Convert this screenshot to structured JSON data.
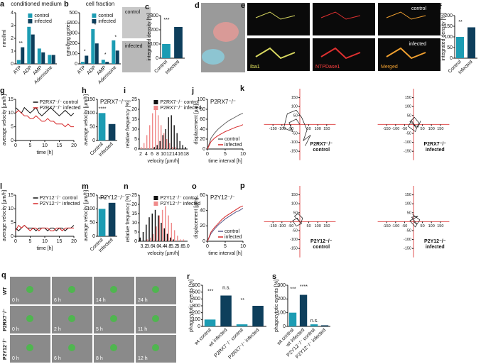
{
  "chart_data": [
    {
      "type": "bar",
      "label": "a",
      "title": "conditioned medium",
      "ylabel": "nmol/ml",
      "categories": [
        "ATP",
        "ADP",
        "AMP",
        "Adenosine"
      ],
      "series": [
        {
          "name": "control",
          "color": "#1c9cb3",
          "values": [
            0.3,
            2.9,
            1.2,
            0.7
          ]
        },
        {
          "name": "infected",
          "color": "#0e3f5c",
          "values": [
            1.3,
            2.3,
            0.9,
            0.7
          ]
        }
      ],
      "ylim": [
        0,
        4
      ],
      "yticks": [
        0,
        1,
        2,
        3,
        4
      ],
      "legend": "upper right",
      "annotations": [
        "**"
      ]
    },
    {
      "type": "bar",
      "label": "b",
      "title": "cell fraction",
      "ylabel": "nmol/mg protein",
      "categories": [
        "ATP",
        "ADP",
        "AMP",
        "Adenosine"
      ],
      "series": [
        {
          "name": "control",
          "color": "#1c9cb3",
          "values": [
            20,
            340,
            40,
            230
          ]
        },
        {
          "name": "infected",
          "color": "#0e3f5c",
          "values": [
            80,
            200,
            20,
            130
          ]
        }
      ],
      "ylim": [
        0,
        500
      ],
      "yticks": [
        0,
        100,
        200,
        300,
        400,
        500
      ],
      "legend": "upper right",
      "annotations": [
        "*",
        "*",
        "*",
        "*"
      ]
    },
    {
      "type": "bar",
      "label": "c",
      "ylabel": "integrated density [%]",
      "categories": [
        "Control",
        "Infected"
      ],
      "values": [
        100,
        220
      ],
      "colors": [
        "#1c9cb3",
        "#0e3f5c"
      ],
      "ylim": [
        0,
        300
      ],
      "yticks": [
        0,
        100,
        200,
        300
      ],
      "annotations": [
        "***"
      ]
    },
    {
      "type": "bar",
      "label": "f",
      "ylabel": "integrated density [%]",
      "categories": [
        "Control",
        "Infected"
      ],
      "values": [
        100,
        145
      ],
      "colors": [
        "#1c9cb3",
        "#0e3f5c"
      ],
      "ylim": [
        0,
        200
      ],
      "yticks": [
        0,
        50,
        100,
        150,
        200
      ],
      "annotations": [
        "**"
      ]
    },
    {
      "type": "line",
      "label": "g",
      "xlabel": "time [h]",
      "ylabel": "average velocity [µm/h]",
      "x": [
        0,
        1,
        2,
        3,
        4,
        5,
        6,
        7,
        8,
        9,
        10,
        11,
        12,
        13,
        14,
        15,
        16,
        17,
        18,
        19,
        20
      ],
      "series": [
        {
          "name": "P2RX7⁻/⁻ control",
          "color": "#111111",
          "values": [
            12,
            11,
            10,
            12,
            11,
            10,
            11,
            12,
            10,
            9,
            10,
            11,
            12,
            11,
            10,
            9,
            10,
            11,
            10,
            9,
            10
          ]
        },
        {
          "name": "P2RX7⁻/⁻ infected",
          "color": "#d62728",
          "values": [
            10,
            11,
            10,
            9,
            9,
            8,
            8,
            9,
            8,
            7,
            7,
            8,
            7,
            7,
            6,
            6,
            6,
            5,
            6,
            5,
            5
          ]
        }
      ],
      "xlim": [
        0,
        20
      ],
      "xticks": [
        0,
        5,
        10,
        15,
        20
      ],
      "ylim": [
        0,
        15
      ],
      "yticks": [
        0,
        5,
        10,
        15
      ],
      "legend": "upper right"
    },
    {
      "type": "bar",
      "label": "h",
      "title": "P2RX7⁻/⁻",
      "ylabel": "average velocity [µm/h]",
      "categories": [
        "Control",
        "Infected"
      ],
      "values": [
        100,
        60
      ],
      "colors": [
        "#1c9cb3",
        "#0e3f5c"
      ],
      "ylim": [
        0,
        150
      ],
      "yticks": [
        0,
        50,
        100,
        150
      ],
      "annotations": [
        "****"
      ]
    },
    {
      "type": "bar",
      "label": "i",
      "xlabel": "velocity [µm/h]",
      "ylabel": "relative frequency [%]",
      "categories": [
        "2",
        null,
        "4",
        null,
        "6",
        null,
        "8",
        null,
        "10",
        null,
        "12",
        null,
        "14",
        null,
        "16",
        null,
        "18"
      ],
      "series": [
        {
          "name": "P2RX7⁻/⁻ control",
          "color": "#111111",
          "values": [
            0,
            0,
            0,
            0,
            0,
            1,
            2,
            4,
            7,
            10,
            16,
            17,
            12,
            8,
            4,
            2,
            1
          ]
        },
        {
          "name": "P2RX7⁻/⁻ infected",
          "color": "#f08a8a",
          "values": [
            1,
            3,
            7,
            12,
            18,
            21,
            17,
            12,
            8,
            5,
            3,
            1,
            1,
            0,
            0,
            0,
            0
          ]
        }
      ],
      "ylim": [
        0,
        25
      ],
      "yticks": [
        0,
        5,
        10,
        15,
        20,
        25
      ],
      "legend": "upper right"
    },
    {
      "type": "line",
      "label": "j",
      "title": "P2RX7⁻/⁻",
      "xlabel": "time interval [h]",
      "ylabel": "displacement [µm]",
      "x": [
        0,
        1,
        2,
        3,
        4,
        5,
        6,
        7,
        8,
        9,
        10
      ],
      "series": [
        {
          "name": "control",
          "color": "#666666",
          "values": [
            0,
            22,
            32,
            40,
            46,
            52,
            57,
            61,
            65,
            69,
            72
          ]
        },
        {
          "name": "infected",
          "color": "#d62728",
          "values": [
            0,
            15,
            22,
            27,
            31,
            35,
            38,
            41,
            44,
            46,
            49
          ]
        }
      ],
      "xlim": [
        0,
        10
      ],
      "xticks": [
        0,
        5,
        10
      ],
      "ylim": [
        0,
        100
      ],
      "yticks": [
        0,
        20,
        40,
        60,
        80,
        100
      ],
      "legend": "lower right"
    },
    {
      "type": "trajectory",
      "label": "k",
      "xlim": [
        -200,
        200
      ],
      "ylim": [
        -200,
        200
      ],
      "xticks": [
        -150,
        -100,
        -50,
        50,
        100,
        150
      ],
      "yticks": [
        -150,
        -100,
        -50,
        50,
        100,
        150
      ],
      "plots": [
        {
          "caption": [
            "P2RX7⁻/⁻",
            "control"
          ],
          "x": [
            0,
            -20,
            -60,
            -40,
            -90,
            -70,
            -20,
            10,
            40,
            20,
            60,
            30
          ],
          "y": [
            0,
            30,
            10,
            -40,
            -20,
            60,
            80,
            40,
            -30,
            -90,
            -60,
            -120
          ]
        },
        {
          "caption": [
            "P2RX7⁻/⁻",
            "infected"
          ],
          "x": [
            0,
            15,
            -10,
            -30,
            10,
            30,
            5,
            -20,
            25,
            40
          ],
          "y": [
            0,
            -20,
            20,
            -10,
            -40,
            10,
            40,
            15,
            -15,
            20
          ]
        }
      ]
    },
    {
      "type": "line",
      "label": "l",
      "xlabel": "time [h]",
      "ylabel": "average velocity [µm/h]",
      "x": [
        0,
        1,
        2,
        3,
        4,
        5,
        6,
        7,
        8,
        9,
        10,
        11,
        12,
        13,
        14,
        15,
        16,
        17,
        18,
        19,
        20
      ],
      "series": [
        {
          "name": "P2Y12⁻/⁻ control",
          "color": "#111111",
          "values": [
            3,
            2,
            3,
            4,
            3,
            3,
            3,
            2,
            3,
            3,
            3,
            2,
            3,
            3,
            2,
            3,
            3,
            2,
            3,
            3,
            4
          ]
        },
        {
          "name": "P2Y12⁻/⁻ infected",
          "color": "#d62728",
          "values": [
            2,
            4,
            3,
            4,
            3,
            2,
            3,
            3,
            2,
            3,
            3,
            3,
            2,
            2,
            3,
            3,
            2,
            3,
            3,
            3,
            3
          ]
        }
      ],
      "xlim": [
        0,
        20
      ],
      "xticks": [
        0,
        5,
        10,
        15,
        20
      ],
      "ylim": [
        0,
        15
      ],
      "yticks": [
        0,
        5,
        10,
        15
      ],
      "legend": "upper right"
    },
    {
      "type": "bar",
      "label": "m",
      "title": "P2Y12⁻/⁻",
      "ylabel": "average velocity [µm/h]",
      "categories": [
        "Control",
        "Infected"
      ],
      "values": [
        100,
        122
      ],
      "colors": [
        "#1c9cb3",
        "#0e3f5c"
      ],
      "ylim": [
        0,
        150
      ],
      "yticks": [
        0,
        50,
        100,
        150
      ],
      "annotations": [
        "****"
      ]
    },
    {
      "type": "bar",
      "label": "n",
      "xlabel": "velocity [µm/h]",
      "ylabel": "relative frequency [%]",
      "categories": [
        null,
        "3.2",
        null,
        "3.6",
        null,
        "4.0",
        null,
        "4.4",
        null,
        "4.8",
        null,
        "5.2",
        null,
        "5.6",
        null,
        "6.0"
      ],
      "series": [
        {
          "name": "P2Y12⁻/⁻ control",
          "color": "#111111",
          "values": [
            2,
            5,
            9,
            13,
            15,
            17,
            14,
            10,
            7,
            4,
            2,
            1,
            0,
            0,
            0,
            0
          ]
        },
        {
          "name": "P2Y12⁻/⁻ infected",
          "color": "#f08a8a",
          "values": [
            0,
            0,
            1,
            2,
            4,
            8,
            14,
            17,
            19,
            14,
            10,
            6,
            3,
            1,
            1,
            0
          ]
        }
      ],
      "ylim": [
        0,
        25
      ],
      "yticks": [
        0,
        5,
        10,
        15,
        20,
        25
      ],
      "legend": "upper right"
    },
    {
      "type": "line",
      "label": "o",
      "title": "P2Y12⁻/⁻",
      "xlabel": "time interval [h]",
      "ylabel": "displacement [µm]",
      "x": [
        0,
        1,
        2,
        3,
        4,
        5,
        6,
        7,
        8,
        9,
        10
      ],
      "series": [
        {
          "name": "control",
          "color": "#5a5a8a",
          "values": [
            0,
            10,
            16,
            21,
            25,
            29,
            32,
            35,
            38,
            40,
            43
          ]
        },
        {
          "name": "infected",
          "color": "#d62728",
          "values": [
            0,
            12,
            18,
            23,
            28,
            32,
            35,
            38,
            41,
            44,
            46
          ]
        }
      ],
      "xlim": [
        0,
        10
      ],
      "xticks": [
        0,
        5,
        10
      ],
      "ylim": [
        0,
        60
      ],
      "yticks": [
        0,
        20,
        40,
        60
      ],
      "legend": "lower right"
    },
    {
      "type": "trajectory",
      "label": "p",
      "xlim": [
        -200,
        200
      ],
      "ylim": [
        -200,
        200
      ],
      "xticks": [
        -150,
        -100,
        -50,
        50,
        100,
        150
      ],
      "yticks": [
        -150,
        -100,
        -50,
        50,
        100,
        150
      ],
      "plots": [
        {
          "caption": [
            "P2Y12⁻/⁻",
            "control"
          ],
          "x": [
            0,
            -15,
            -40,
            -20,
            10,
            -30,
            -10,
            15,
            5
          ],
          "y": [
            0,
            20,
            5,
            -25,
            -10,
            30,
            45,
            20,
            -15
          ]
        },
        {
          "caption": [
            "P2Y12⁻/⁻",
            "infected"
          ],
          "x": [
            0,
            20,
            -10,
            25,
            -20,
            10,
            35,
            -5
          ],
          "y": [
            0,
            -15,
            25,
            30,
            5,
            -30,
            10,
            40
          ]
        }
      ]
    },
    {
      "type": "bar",
      "label": "r",
      "ylabel": "phagocytotic events [%]",
      "categories": [
        "wt control",
        "wt infected",
        "P2RX7⁻/⁻ control",
        "P2RX7⁻/⁻ infected"
      ],
      "values": [
        100,
        450,
        30,
        300
      ],
      "colors": [
        "#1c9cb3",
        "#0e3f5c",
        "#1c9cb3",
        "#0e3f5c"
      ],
      "ylim": [
        0,
        600
      ],
      "yticks": [
        0,
        100,
        200,
        300,
        400,
        500,
        600
      ],
      "annotations": [
        "***",
        "n.s.",
        "**"
      ]
    },
    {
      "type": "bar",
      "label": "s",
      "ylabel": "phagocytotic events [%]",
      "categories": [
        "wt control",
        "wt infected",
        "P2Y12⁻/⁻ control",
        "P2Y12⁻/⁻ infected"
      ],
      "values": [
        100,
        230,
        15,
        8
      ],
      "colors": [
        "#1c9cb3",
        "#0e3f5c",
        "#1c9cb3",
        "#0e3f5c"
      ],
      "ylim": [
        0,
        300
      ],
      "yticks": [
        0,
        100,
        200,
        300
      ],
      "annotations": [
        "***",
        "****",
        "n.s."
      ]
    }
  ],
  "images": {
    "c": {
      "texts": [
        "control",
        "infected"
      ]
    },
    "d": {
      "label": "d"
    },
    "e": {
      "label": "e",
      "texts": [
        "control",
        "infected",
        "Iba1",
        "NTPDase1",
        "Merged"
      ]
    },
    "q": {
      "label": "q",
      "rows": [
        "WT",
        "P2RX7⁻/⁻",
        "P2Y12⁻/⁻"
      ],
      "times": [
        [
          "0 h",
          "6 h",
          "14 h",
          "24 h"
        ],
        [
          "0 h",
          "2 h",
          "5 h",
          "11 h"
        ],
        [
          "0 h",
          "6 h",
          "8 h",
          "12 h"
        ]
      ]
    }
  }
}
